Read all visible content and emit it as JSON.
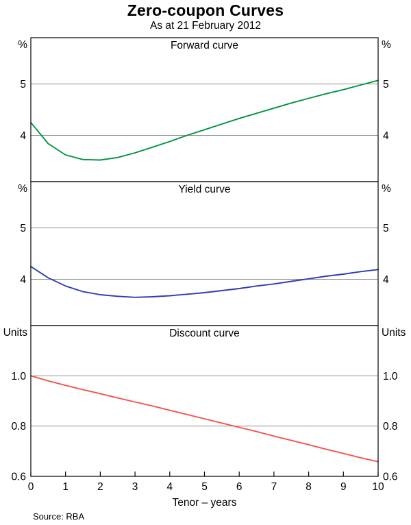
{
  "header": {
    "title": "Zero-coupon Curves",
    "subtitle": "As at 21 February 2012"
  },
  "footer": {
    "source": "Source: RBA"
  },
  "x_axis": {
    "label": "Tenor – years",
    "range": [
      0,
      10
    ],
    "ticks": [
      0,
      1,
      2,
      3,
      4,
      5,
      6,
      7,
      8,
      9,
      10
    ]
  },
  "colors": {
    "grid": "#8c8c8c",
    "frame": "#000000"
  },
  "chart_data": [
    {
      "type": "line",
      "id": "forward",
      "title": "Forward curve",
      "unit": "%",
      "color": "#00963c",
      "ylim": [
        3.1,
        5.9
      ],
      "yticks": [
        4,
        5
      ],
      "ytick_labels": [
        "4",
        "5"
      ],
      "x": [
        0,
        0.5,
        1,
        1.5,
        2,
        2.5,
        3,
        3.5,
        4,
        4.5,
        5,
        5.5,
        6,
        6.5,
        7,
        7.5,
        8,
        8.5,
        9,
        9.5,
        10
      ],
      "values": [
        4.25,
        3.84,
        3.62,
        3.53,
        3.52,
        3.57,
        3.66,
        3.77,
        3.88,
        4.0,
        4.11,
        4.22,
        4.33,
        4.43,
        4.53,
        4.63,
        4.72,
        4.81,
        4.89,
        4.98,
        5.07
      ]
    },
    {
      "type": "line",
      "id": "yield",
      "title": "Yield curve",
      "unit": "%",
      "color": "#2d3bb3",
      "ylim": [
        3.1,
        5.9
      ],
      "yticks": [
        4,
        5
      ],
      "ytick_labels": [
        "4",
        "5"
      ],
      "x": [
        0,
        0.5,
        1,
        1.5,
        2,
        2.5,
        3,
        3.5,
        4,
        4.5,
        5,
        5.5,
        6,
        6.5,
        7,
        7.5,
        8,
        8.5,
        9,
        9.5,
        10
      ],
      "values": [
        4.25,
        4.03,
        3.87,
        3.76,
        3.7,
        3.67,
        3.65,
        3.66,
        3.68,
        3.71,
        3.74,
        3.78,
        3.82,
        3.87,
        3.91,
        3.96,
        4.01,
        4.06,
        4.1,
        4.15,
        4.19
      ]
    },
    {
      "type": "line",
      "id": "discount",
      "title": "Discount curve",
      "unit": "Units",
      "color": "#f2554d",
      "ylim": [
        0.6,
        1.2
      ],
      "yticks": [
        0.6,
        0.8,
        1.0
      ],
      "ytick_labels": [
        "0.6",
        "0.8",
        "1.0"
      ],
      "x": [
        0,
        0.5,
        1,
        1.5,
        2,
        2.5,
        3,
        3.5,
        4,
        4.5,
        5,
        5.5,
        6,
        6.5,
        7,
        7.5,
        8,
        8.5,
        9,
        9.5,
        10
      ],
      "values": [
        1.0,
        0.98,
        0.962,
        0.945,
        0.929,
        0.912,
        0.896,
        0.88,
        0.863,
        0.846,
        0.829,
        0.812,
        0.795,
        0.778,
        0.76,
        0.743,
        0.726,
        0.708,
        0.691,
        0.674,
        0.658
      ]
    }
  ]
}
